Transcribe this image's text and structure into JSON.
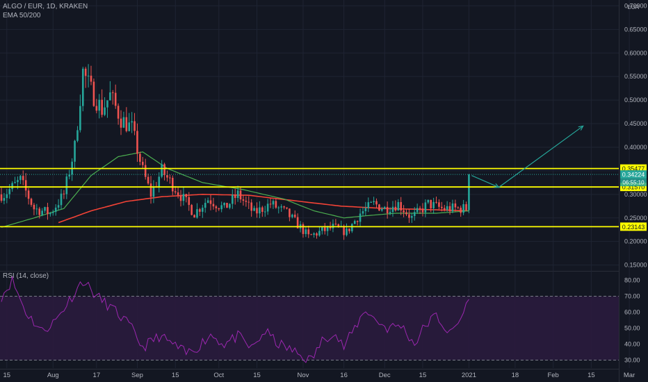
{
  "header": {
    "symbol": "ALGO / EUR, 1D, KRAKEN",
    "indicator": "EMA 50/200",
    "currency": "EUR"
  },
  "rsi_label": "RSI (14, close)",
  "colors": {
    "background": "#131722",
    "grid": "#1f2433",
    "up": "#26a69a",
    "down": "#ef5350",
    "ema50": "#4caf50",
    "ema200": "#f44336",
    "level_line": "#ffff00",
    "projection": "#26a69a",
    "rsi_line": "#9c27b0",
    "rsi_band": "#2a1b3d",
    "axis_text": "#b2b5be"
  },
  "chart_data": {
    "type": "candlestick",
    "title": "ALGO / EUR, 1D, KRAKEN",
    "x_ticks": [
      "15",
      "Aug",
      "17",
      "Sep",
      "15",
      "Oct",
      "15",
      "Nov",
      "16",
      "Dec",
      "15",
      "2021",
      "18",
      "Feb",
      "15",
      "Mar"
    ],
    "x_tick_dates": [
      "2020-07-15",
      "2020-08-01",
      "2020-08-17",
      "2020-09-01",
      "2020-09-15",
      "2020-10-01",
      "2020-10-15",
      "2020-11-01",
      "2020-11-16",
      "2020-12-01",
      "2020-12-15",
      "2021-01-01",
      "2021-01-18",
      "2021-02-01",
      "2021-02-15",
      "2021-03-01"
    ],
    "y_ticks": [
      "0.70000",
      "0.65000",
      "0.60000",
      "0.55000",
      "0.50000",
      "0.45000",
      "0.40000",
      "0.35000",
      "0.30000",
      "0.25000",
      "0.20000",
      "0.15000"
    ],
    "ylim": [
      0.145,
      0.705
    ],
    "horizontal_levels": [
      {
        "value": 0.35477,
        "label": "0.35477"
      },
      {
        "value": 0.3157,
        "label": "0.31570"
      },
      {
        "value": 0.23143,
        "label": "0.23143"
      }
    ],
    "last_price": {
      "value": 0.34224,
      "label": "0.34224"
    },
    "countdown_label": "06:55:10",
    "price_anchors": [
      [
        "2020-07-14",
        0.3
      ],
      [
        "2020-07-20",
        0.33
      ],
      [
        "2020-07-25",
        0.27
      ],
      [
        "2020-07-31",
        0.26
      ],
      [
        "2020-08-05",
        0.3
      ],
      [
        "2020-08-09",
        0.4
      ],
      [
        "2020-08-12",
        0.56
      ],
      [
        "2020-08-15",
        0.52
      ],
      [
        "2020-08-19",
        0.48
      ],
      [
        "2020-08-22",
        0.51
      ],
      [
        "2020-08-26",
        0.46
      ],
      [
        "2020-08-30",
        0.44
      ],
      [
        "2020-09-03",
        0.35
      ],
      [
        "2020-09-06",
        0.3
      ],
      [
        "2020-09-10",
        0.35
      ],
      [
        "2020-09-14",
        0.32
      ],
      [
        "2020-09-18",
        0.29
      ],
      [
        "2020-09-22",
        0.26
      ],
      [
        "2020-09-27",
        0.29
      ],
      [
        "2020-10-03",
        0.27
      ],
      [
        "2020-10-08",
        0.3
      ],
      [
        "2020-10-14",
        0.26
      ],
      [
        "2020-10-20",
        0.28
      ],
      [
        "2020-10-26",
        0.26
      ],
      [
        "2020-10-31",
        0.23
      ],
      [
        "2020-11-03",
        0.21
      ],
      [
        "2020-11-07",
        0.22
      ],
      [
        "2020-11-12",
        0.23
      ],
      [
        "2020-11-17",
        0.22
      ],
      [
        "2020-11-22",
        0.26
      ],
      [
        "2020-11-27",
        0.28
      ],
      [
        "2020-12-01",
        0.27
      ],
      [
        "2020-12-06",
        0.28
      ],
      [
        "2020-12-11",
        0.25
      ],
      [
        "2020-12-17",
        0.28
      ],
      [
        "2020-12-22",
        0.27
      ],
      [
        "2020-12-27",
        0.27
      ],
      [
        "2020-12-31",
        0.27
      ],
      [
        "2021-01-01",
        0.34
      ]
    ],
    "ema50_anchors": [
      [
        "2020-07-13",
        0.23
      ],
      [
        "2020-07-25",
        0.25
      ],
      [
        "2020-08-05",
        0.27
      ],
      [
        "2020-08-15",
        0.34
      ],
      [
        "2020-08-25",
        0.38
      ],
      [
        "2020-09-03",
        0.39
      ],
      [
        "2020-09-12",
        0.355
      ],
      [
        "2020-09-25",
        0.325
      ],
      [
        "2020-10-10",
        0.31
      ],
      [
        "2020-10-25",
        0.29
      ],
      [
        "2020-11-05",
        0.265
      ],
      [
        "2020-11-16",
        0.25
      ],
      [
        "2020-11-25",
        0.255
      ],
      [
        "2020-12-05",
        0.26
      ],
      [
        "2020-12-20",
        0.26
      ],
      [
        "2021-01-01",
        0.265
      ]
    ],
    "ema200_anchors": [
      [
        "2020-08-03",
        0.24
      ],
      [
        "2020-08-15",
        0.265
      ],
      [
        "2020-08-28",
        0.285
      ],
      [
        "2020-09-10",
        0.295
      ],
      [
        "2020-09-25",
        0.3
      ],
      [
        "2020-10-12",
        0.298
      ],
      [
        "2020-10-31",
        0.285
      ],
      [
        "2020-11-15",
        0.275
      ],
      [
        "2020-12-01",
        0.27
      ],
      [
        "2020-12-15",
        0.268
      ],
      [
        "2021-01-01",
        0.265
      ]
    ],
    "projection_path": [
      [
        "2021-01-02",
        0.34
      ],
      [
        "2021-01-12",
        0.315
      ],
      [
        "2021-02-12",
        0.445
      ]
    ],
    "rsi": {
      "ylim": [
        25,
        85
      ],
      "y_ticks": [
        "80.00",
        "70.00",
        "60.00",
        "50.00",
        "40.00",
        "30.00"
      ],
      "band": [
        30,
        70
      ],
      "anchors": [
        [
          "2020-07-13",
          70
        ],
        [
          "2020-07-17",
          80
        ],
        [
          "2020-07-22",
          60
        ],
        [
          "2020-07-28",
          48
        ],
        [
          "2020-08-02",
          55
        ],
        [
          "2020-08-08",
          70
        ],
        [
          "2020-08-12",
          80
        ],
        [
          "2020-08-17",
          70
        ],
        [
          "2020-08-23",
          62
        ],
        [
          "2020-08-29",
          52
        ],
        [
          "2020-09-03",
          38
        ],
        [
          "2020-09-09",
          45
        ],
        [
          "2020-09-14",
          40
        ],
        [
          "2020-09-19",
          34
        ],
        [
          "2020-09-23",
          38
        ],
        [
          "2020-09-28",
          46
        ],
        [
          "2020-10-03",
          40
        ],
        [
          "2020-10-08",
          45
        ],
        [
          "2020-10-13",
          37
        ],
        [
          "2020-10-18",
          48
        ],
        [
          "2020-10-23",
          40
        ],
        [
          "2020-10-28",
          36
        ],
        [
          "2020-11-01",
          32
        ],
        [
          "2020-11-04",
          30
        ],
        [
          "2020-11-08",
          42
        ],
        [
          "2020-11-12",
          48
        ],
        [
          "2020-11-16",
          38
        ],
        [
          "2020-11-20",
          50
        ],
        [
          "2020-11-24",
          62
        ],
        [
          "2020-11-27",
          56
        ],
        [
          "2020-12-02",
          50
        ],
        [
          "2020-12-07",
          52
        ],
        [
          "2020-12-12",
          40
        ],
        [
          "2020-12-16",
          52
        ],
        [
          "2020-12-20",
          58
        ],
        [
          "2020-12-25",
          46
        ],
        [
          "2020-12-29",
          56
        ],
        [
          "2021-01-01",
          68
        ]
      ]
    }
  }
}
